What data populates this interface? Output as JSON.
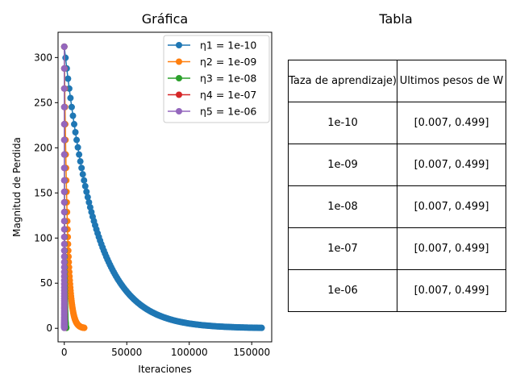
{
  "chart_data": [
    {
      "type": "line",
      "title": "Gráfica",
      "xlabel": "Iteraciones",
      "ylabel": "Magnitud de Perdida",
      "xlim": [
        -5000,
        166000
      ],
      "ylim": [
        -15,
        328
      ],
      "x_ticks": [
        0,
        50000,
        100000,
        150000
      ],
      "x_tick_labels": [
        "0",
        "50000",
        "100000",
        "150000"
      ],
      "y_ticks": [
        0,
        50,
        100,
        150,
        200,
        250,
        300
      ],
      "y_tick_labels": [
        "0",
        "50",
        "100",
        "150",
        "200",
        "250",
        "300"
      ],
      "grid": false,
      "legend_position": "top-right",
      "marker": "circle",
      "series": [
        {
          "name": "η1 = 1e-10",
          "color": "#1f77b4",
          "start_loss": 312,
          "end_loss": 0.5,
          "last_iteration": 158000
        },
        {
          "name": "η2 = 1e-09",
          "color": "#ff7f0e",
          "start_loss": 312,
          "end_loss": 0.5,
          "last_iteration": 16000
        },
        {
          "name": "η3 = 1e-08",
          "color": "#2ca02c",
          "start_loss": 312,
          "end_loss": 0.5,
          "last_iteration": 1600
        },
        {
          "name": "η4 = 1e-07",
          "color": "#d62728",
          "start_loss": 312,
          "end_loss": 0.5,
          "last_iteration": 160
        },
        {
          "name": "η5 = 1e-06",
          "color": "#9467bd",
          "start_loss": 312,
          "end_loss": 0.5,
          "last_iteration": 16
        }
      ]
    },
    {
      "type": "table",
      "title": "Tabla",
      "columns": [
        "η (Taza de aprendizaje)",
        "Ultimos pesos de W"
      ],
      "rows": [
        [
          "1e-10",
          "[0.007, 0.499]"
        ],
        [
          "1e-09",
          "[0.007, 0.499]"
        ],
        [
          "1e-08",
          "[0.007, 0.499]"
        ],
        [
          "1e-07",
          "[0.007, 0.499]"
        ],
        [
          "1e-06",
          "[0.007, 0.499]"
        ]
      ]
    }
  ]
}
